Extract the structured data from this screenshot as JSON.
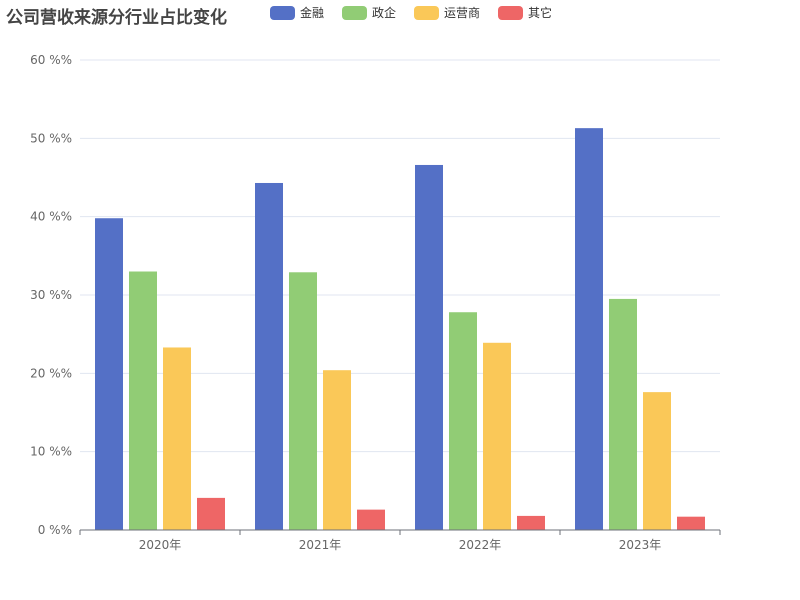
{
  "chart_data": {
    "type": "bar",
    "title": "公司营收来源分行业占比变化",
    "categories": [
      "2020年",
      "2021年",
      "2022年",
      "2023年"
    ],
    "series": [
      {
        "name": "金融",
        "color": "#5470c6",
        "values": [
          39.8,
          44.3,
          46.6,
          51.3
        ]
      },
      {
        "name": "政企",
        "color": "#91cc75",
        "values": [
          33.0,
          32.9,
          27.8,
          29.5
        ]
      },
      {
        "name": "运营商",
        "color": "#fac858",
        "values": [
          23.3,
          20.4,
          23.9,
          17.6
        ]
      },
      {
        "name": "其它",
        "color": "#ee6666",
        "values": [
          4.1,
          2.6,
          1.8,
          1.7
        ]
      }
    ],
    "ylim": [
      0,
      60
    ],
    "yticks": [
      0,
      10,
      20,
      30,
      40,
      50,
      60
    ],
    "ytick_labels": [
      "0 %%",
      "10 %%",
      "20 %%",
      "30 %%",
      "40 %%",
      "50 %%",
      "60 %%"
    ],
    "grid": true,
    "legend_position": "top"
  }
}
